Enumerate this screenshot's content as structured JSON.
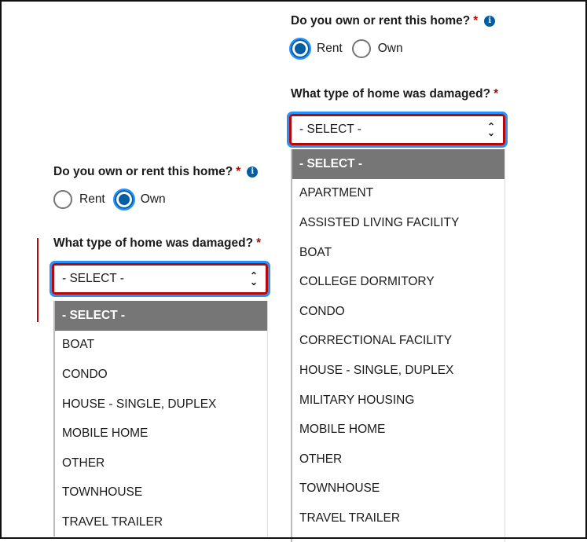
{
  "right": {
    "question": "Do you own or rent this home?",
    "required": "*",
    "radios": [
      {
        "label": "Rent",
        "checked": true
      },
      {
        "label": "Own",
        "checked": false
      }
    ],
    "type_question": "What type of home was damaged?",
    "select_value": "- SELECT -",
    "options": [
      "- SELECT -",
      "APARTMENT",
      "ASSISTED LIVING FACILITY",
      "BOAT",
      "COLLEGE DORMITORY",
      "CONDO",
      "CORRECTIONAL FACILITY",
      "HOUSE - SINGLE, DUPLEX",
      "MILITARY HOUSING",
      "MOBILE HOME",
      "OTHER",
      "TOWNHOUSE",
      "TRAVEL TRAILER"
    ]
  },
  "left": {
    "question": "Do you own or rent this home?",
    "required": "*",
    "radios": [
      {
        "label": "Rent",
        "checked": false
      },
      {
        "label": "Own",
        "checked": true
      }
    ],
    "type_question": "What type of home was damaged?",
    "select_value": "- SELECT -",
    "options": [
      "- SELECT -",
      "BOAT",
      "CONDO",
      "HOUSE - SINGLE, DUPLEX",
      "MOBILE HOME",
      "OTHER",
      "TOWNHOUSE",
      "TRAVEL TRAILER"
    ]
  },
  "icons": {
    "info": "info-icon",
    "chevron": "chevron-up-down-icon"
  },
  "colors": {
    "error": "#b50909",
    "primary": "#005ea2",
    "focus": "#2491ff",
    "selected_option": "#767676"
  }
}
